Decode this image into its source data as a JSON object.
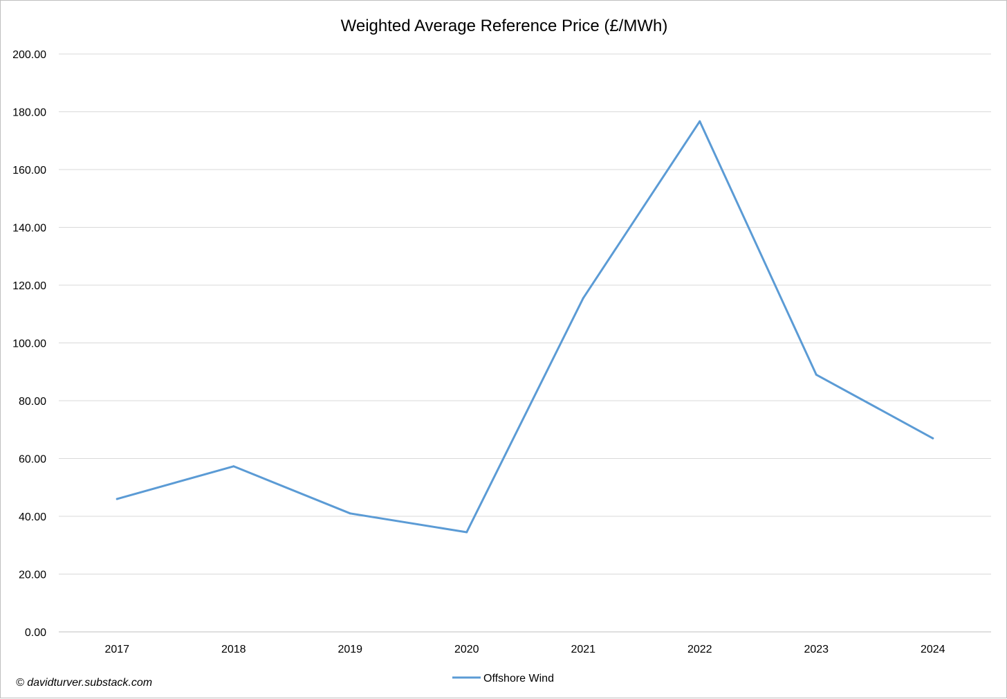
{
  "chart_data": {
    "type": "line",
    "title": "Weighted Average Reference Price (£/MWh)",
    "xlabel": "",
    "ylabel": "",
    "categories": [
      "2017",
      "2018",
      "2019",
      "2020",
      "2021",
      "2022",
      "2023",
      "2024"
    ],
    "series": [
      {
        "name": "Offshore Wind",
        "color": "#5b9bd5",
        "values": [
          46.0,
          57.3,
          41.0,
          34.5,
          115.5,
          176.7,
          89.0,
          67.0
        ]
      }
    ],
    "ylim": [
      0,
      200
    ],
    "yticks": [
      "0.00",
      "20.00",
      "40.00",
      "60.00",
      "80.00",
      "100.00",
      "120.00",
      "140.00",
      "160.00",
      "180.00",
      "200.00"
    ],
    "grid": true,
    "legend_position": "bottom"
  },
  "credit": "© davidturver.substack.com",
  "colors": {
    "gridline": "#d9d9d9",
    "axis": "#bfbfbf"
  }
}
